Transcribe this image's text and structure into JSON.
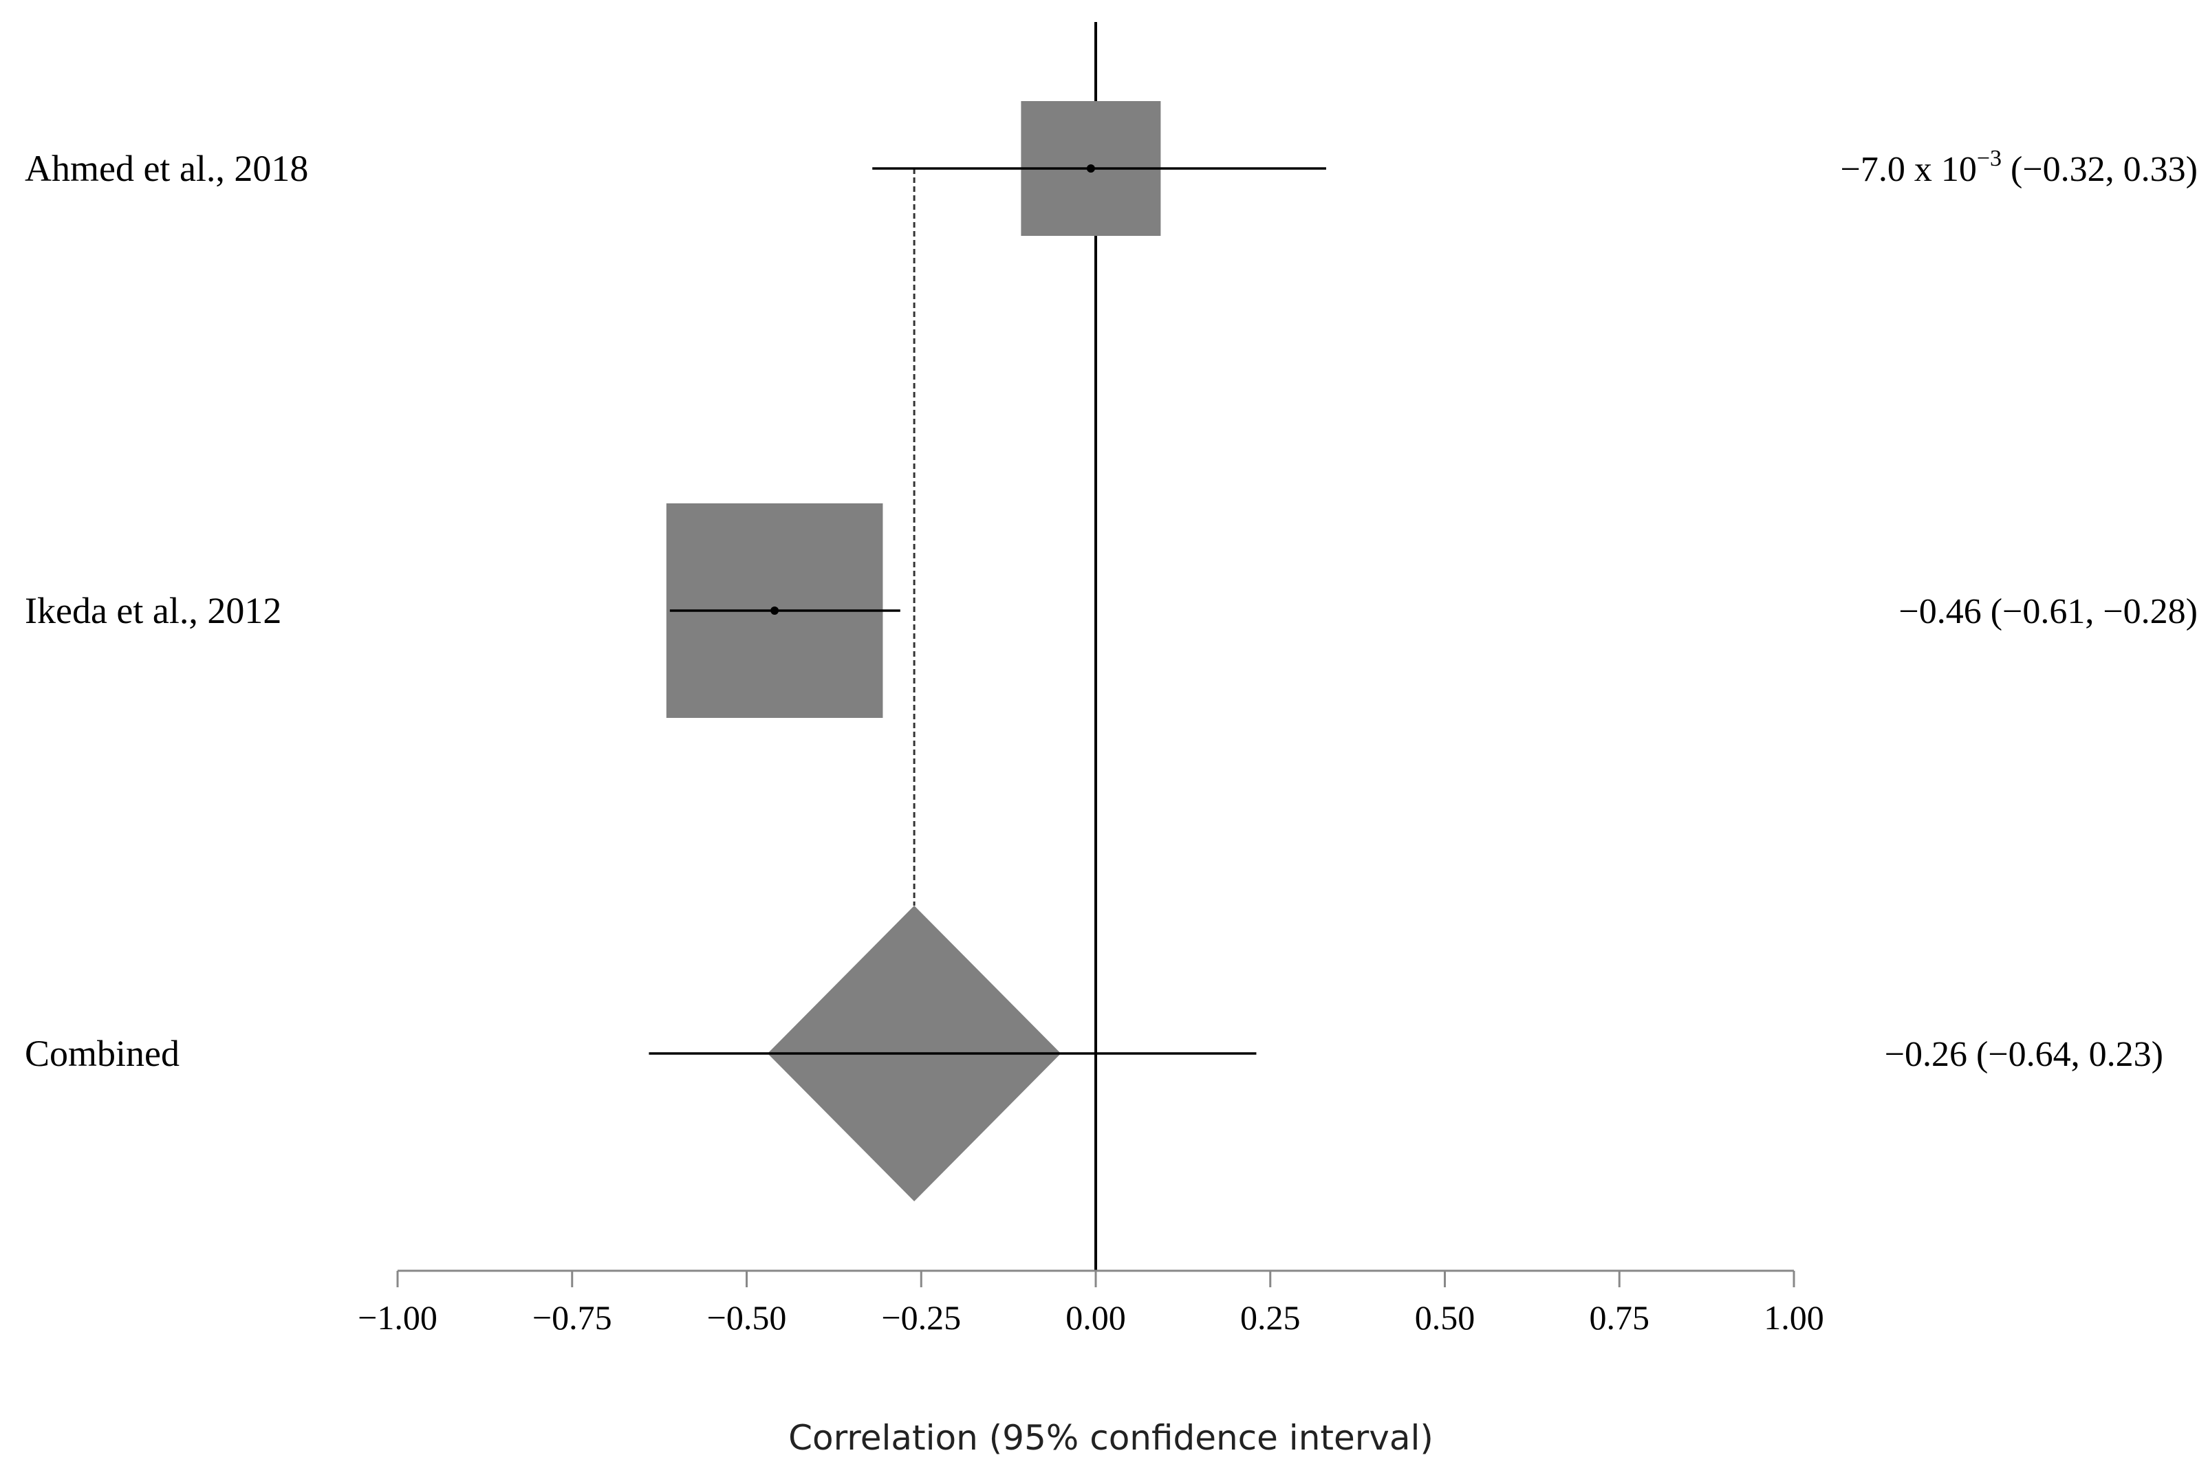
{
  "chart_data": {
    "type": "forest",
    "xlabel": "Correlation (95% confidence interval)",
    "xlim": [
      -1.0,
      1.0
    ],
    "x_ticks": [
      -1.0,
      -0.75,
      -0.5,
      -0.25,
      0.0,
      0.25,
      0.5,
      0.75,
      1.0
    ],
    "x_tick_labels": [
      "−1.00",
      "−0.75",
      "−0.50",
      "−0.25",
      "0.00",
      "0.25",
      "0.50",
      "0.75",
      "1.00"
    ],
    "reference_line": 0.0,
    "pooled_reference_line": -0.26,
    "studies": [
      {
        "label": "Ahmed et al., 2018",
        "estimate": -0.007,
        "ci_low": -0.32,
        "ci_high": 0.33,
        "estimate_text_main": "−7.0 x 10",
        "estimate_text_exp": "−3",
        "estimate_text_ci": " (−0.32, 0.33)",
        "box_halfwidth": 0.1,
        "marker": "square"
      },
      {
        "label": "Ikeda et al., 2012",
        "estimate": -0.46,
        "ci_low": -0.61,
        "ci_high": -0.28,
        "estimate_text_main": "−0.46 (−0.61, −0.28)",
        "estimate_text_exp": "",
        "estimate_text_ci": "",
        "box_halfwidth": 0.155,
        "marker": "square"
      }
    ],
    "combined": {
      "label": "Combined",
      "estimate": -0.26,
      "ci_low": -0.64,
      "ci_high": 0.23,
      "estimate_text_main": "−0.26 (−0.64, 0.23)",
      "diamond_low": -0.47,
      "diamond_high": -0.05,
      "marker": "diamond"
    },
    "colors": {
      "marker_fill": "#808080",
      "line": "#000000"
    }
  }
}
